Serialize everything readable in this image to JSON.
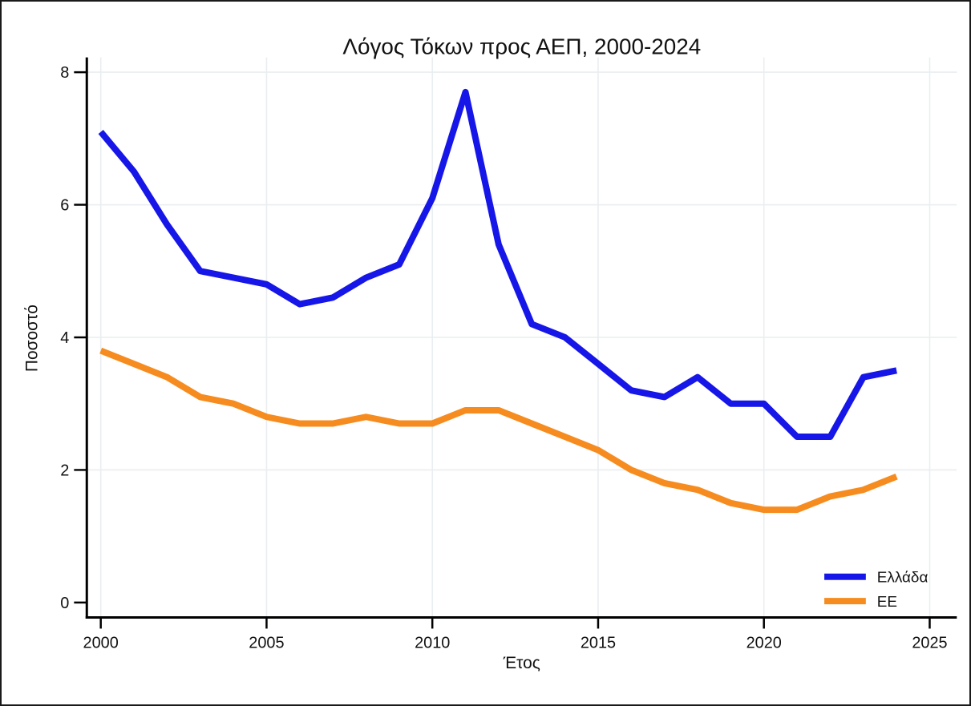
{
  "figure": {
    "background": "#ffffff",
    "border_color": "#1a1a1a"
  },
  "chart_data": {
    "type": "line",
    "title": "Λόγος Τόκων προς ΑΕΠ, 2000-2024",
    "xlabel": "Έτος",
    "ylabel": "Ποσοστό",
    "x": [
      2000,
      2001,
      2002,
      2003,
      2004,
      2005,
      2006,
      2007,
      2008,
      2009,
      2010,
      2011,
      2012,
      2013,
      2014,
      2015,
      2016,
      2017,
      2018,
      2019,
      2020,
      2021,
      2022,
      2023,
      2024
    ],
    "series": [
      {
        "id": "greece",
        "name": "Ελλάδα",
        "color": "#1616e8",
        "values": [
          7.1,
          6.5,
          5.7,
          5.0,
          4.9,
          4.8,
          4.5,
          4.6,
          4.9,
          5.1,
          6.1,
          7.7,
          5.4,
          4.2,
          4.0,
          3.6,
          3.2,
          3.1,
          3.4,
          3.0,
          3.0,
          2.5,
          2.5,
          3.4,
          3.5
        ]
      },
      {
        "id": "eu",
        "name": "ΕΕ",
        "color": "#f68c1f",
        "values": [
          3.8,
          3.6,
          3.4,
          3.1,
          3.0,
          2.8,
          2.7,
          2.7,
          2.8,
          2.7,
          2.7,
          2.9,
          2.9,
          2.7,
          2.5,
          2.3,
          2.0,
          1.8,
          1.7,
          1.5,
          1.4,
          1.4,
          1.6,
          1.7,
          1.9
        ]
      }
    ],
    "xlim": [
      2000,
      2025
    ],
    "ylim": [
      0,
      8
    ],
    "x_ticks": [
      2000,
      2005,
      2010,
      2015,
      2020,
      2025
    ],
    "y_ticks": [
      0,
      2,
      4,
      6,
      8
    ],
    "grid": true,
    "legend_position": "lower-right",
    "title_color": "#22365c",
    "grid_color": "#e9eef1",
    "axis_color": "#000000",
    "line_width": 8
  }
}
